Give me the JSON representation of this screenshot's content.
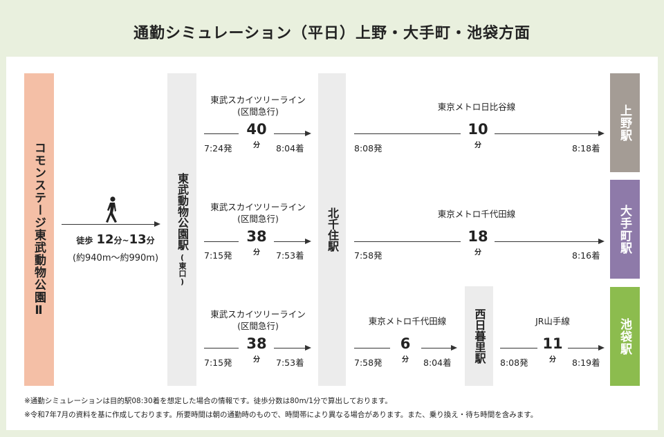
{
  "title": "通勤シミュレーション（平日）上野・大手町・池袋方面",
  "origin": "コモンステージ東武動物公園Ⅱ",
  "walk": {
    "label_prefix": "徒歩",
    "min": "12",
    "tilde": "分~",
    "max": "13",
    "unit": "分",
    "distance": "(約940m～約990m)"
  },
  "stations": {
    "tobu": "東武動物公園駅",
    "tobu_exit": "(東口)",
    "kitasenju": "北千住駅",
    "nishinippori": "西日暮里駅"
  },
  "destinations": [
    {
      "name": "上野駅",
      "color": "#a49c95"
    },
    {
      "name": "大手町駅",
      "color": "#8e7aa9"
    },
    {
      "name": "池袋駅",
      "color": "#8cbc4e"
    }
  ],
  "routes": {
    "r1a": {
      "line1": "東武スカイツリーライン",
      "line2": "(区間急行)",
      "minutes": "40",
      "unit": "分",
      "dep": "7:24発",
      "arr": "8:04着"
    },
    "r1b": {
      "line": "東京メトロ日比谷線",
      "minutes": "10",
      "unit": "分",
      "dep": "8:08発",
      "arr": "8:18着"
    },
    "r2a": {
      "line1": "東武スカイツリーライン",
      "line2": "(区間急行)",
      "minutes": "38",
      "unit": "分",
      "dep": "7:15発",
      "arr": "7:53着"
    },
    "r2b": {
      "line": "東京メトロ千代田線",
      "minutes": "18",
      "unit": "分",
      "dep": "7:58発",
      "arr": "8:16着"
    },
    "r3a": {
      "line1": "東武スカイツリーライン",
      "line2": "(区間急行)",
      "minutes": "38",
      "unit": "分",
      "dep": "7:15発",
      "arr": "7:53着"
    },
    "r3b": {
      "line": "東京メトロ千代田線",
      "minutes": "6",
      "unit": "分",
      "dep": "7:58発",
      "arr": "8:04着"
    },
    "r3c": {
      "line": "JR山手線",
      "minutes": "11",
      "unit": "分",
      "dep": "8:08発",
      "arr": "8:19着"
    }
  },
  "notes": [
    "※通勤シミュレーションは目的駅08:30着を想定した場合の情報です。徒歩分数は80m/1分で算出しております。",
    "※令和7年7月の資料を基に作成しております。所要時間は朝の通勤時のもので、時間帯により異なる場合があります。また、乗り換え・待ち時間を含みます。"
  ]
}
